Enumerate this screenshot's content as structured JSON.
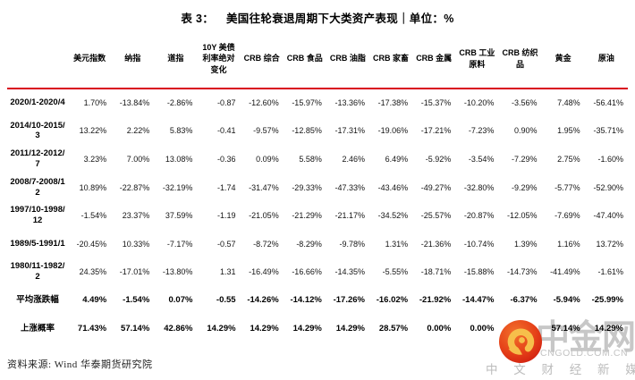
{
  "title": {
    "prefix": "表 3：",
    "text": "美国往轮衰退周期下大类资产表现｜单位：%"
  },
  "table": {
    "columns": [
      "美元指数",
      "纳指",
      "道指",
      "10Y 美债利率绝对变化",
      "CRB 综合",
      "CRB 食品",
      "CRB 油脂",
      "CRB 家畜",
      "CRB 金属",
      "CRB 工业原料",
      "CRB 纺织品",
      "黄金",
      "原油"
    ],
    "rows": [
      {
        "label": "2020/1-2020/4",
        "bold": false,
        "values": [
          "1.70%",
          "-13.84%",
          "-2.86%",
          "-0.87",
          "-12.60%",
          "-15.97%",
          "-13.36%",
          "-17.38%",
          "-15.37%",
          "-10.20%",
          "-3.56%",
          "7.48%",
          "-56.41%"
        ]
      },
      {
        "label": "2014/10-2015/3",
        "bold": false,
        "values": [
          "13.22%",
          "2.22%",
          "5.83%",
          "-0.41",
          "-9.57%",
          "-12.85%",
          "-17.31%",
          "-19.06%",
          "-17.21%",
          "-7.23%",
          "0.90%",
          "1.95%",
          "-35.71%"
        ]
      },
      {
        "label": "2011/12-2012/7",
        "bold": false,
        "values": [
          "3.23%",
          "7.00%",
          "13.08%",
          "-0.36",
          "0.09%",
          "5.58%",
          "2.46%",
          "6.49%",
          "-5.92%",
          "-3.54%",
          "-7.29%",
          "2.75%",
          "-1.60%"
        ]
      },
      {
        "label": "2008/7-2008/12",
        "bold": false,
        "values": [
          "10.89%",
          "-22.87%",
          "-32.19%",
          "-1.74",
          "-31.47%",
          "-29.33%",
          "-47.33%",
          "-43.46%",
          "-49.27%",
          "-32.80%",
          "-9.29%",
          "-5.77%",
          "-52.90%"
        ]
      },
      {
        "label": "1997/10-1998/12",
        "bold": false,
        "values": [
          "-1.54%",
          "23.37%",
          "37.59%",
          "-1.19",
          "-21.05%",
          "-21.29%",
          "-21.17%",
          "-34.52%",
          "-25.57%",
          "-20.87%",
          "-12.05%",
          "-7.69%",
          "-47.40%"
        ]
      },
      {
        "label": "1989/5-1991/1",
        "bold": false,
        "values": [
          "-20.45%",
          "10.33%",
          "-7.17%",
          "-0.57",
          "-8.72%",
          "-8.29%",
          "-9.78%",
          "1.31%",
          "-21.36%",
          "-10.74%",
          "1.39%",
          "1.16%",
          "13.72%"
        ]
      },
      {
        "label": "1980/11-1982/2",
        "bold": false,
        "values": [
          "24.35%",
          "-17.01%",
          "-13.80%",
          "1.31",
          "-16.49%",
          "-16.66%",
          "-14.35%",
          "-5.55%",
          "-18.71%",
          "-15.88%",
          "-14.73%",
          "-41.49%",
          "-1.61%"
        ]
      },
      {
        "label": "平均涨跌幅",
        "bold": true,
        "values": [
          "4.49%",
          "-1.54%",
          "0.07%",
          "-0.55",
          "-14.26%",
          "-14.12%",
          "-17.26%",
          "-16.02%",
          "-21.92%",
          "-14.47%",
          "-6.37%",
          "-5.94%",
          "-25.99%"
        ]
      },
      {
        "label": "上涨概率",
        "bold": true,
        "values": [
          "71.43%",
          "57.14%",
          "42.86%",
          "14.29%",
          "14.29%",
          "14.29%",
          "14.29%",
          "28.57%",
          "0.00%",
          "0.00%",
          "",
          "57.14%",
          "14.29%"
        ]
      }
    ]
  },
  "footer": {
    "source": "资料来源: Wind 华泰期货研究院"
  },
  "watermark": {
    "brand": "中金网",
    "domain": "CNGOLD.COM.CN",
    "tagline": "中 文 财 经 新 媒 体"
  },
  "colors": {
    "rule_red": "#d9001b",
    "logo_red": "#dd2716",
    "logo_orange": "#f2712b",
    "logo_gold": "#f6bf4b",
    "watermark_gray": "#bcbcbc"
  }
}
